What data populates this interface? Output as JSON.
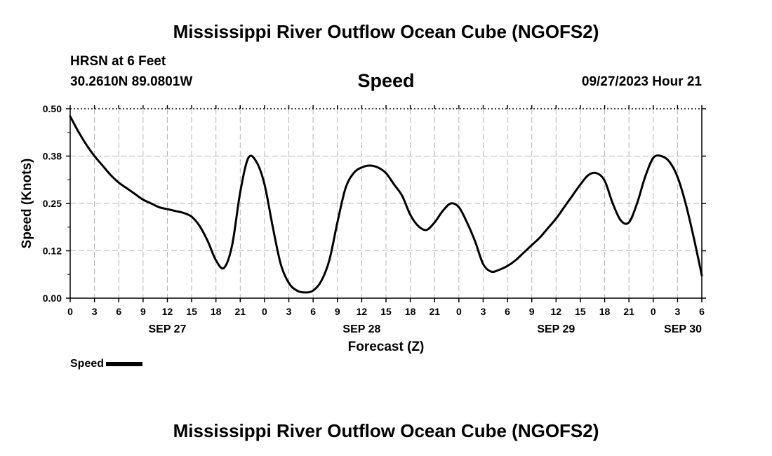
{
  "header": {
    "title": "Mississippi River Outflow Ocean Cube (NGOFS2)",
    "station": "HRSN at 6 Feet",
    "coords": "30.2610N  89.0801W",
    "datetime": "09/27/2023 Hour 21",
    "footer_title": "Mississippi River Outflow Ocean Cube (NGOFS2)"
  },
  "chart_data": {
    "type": "line",
    "title": "Speed",
    "xlabel": "Forecast (Z)",
    "ylabel": "Speed (Knots)",
    "x_unit": "hours from 00Z Sep 27 2023",
    "xlim": [
      0,
      78
    ],
    "ylim": [
      0,
      0.5
    ],
    "yticks": [
      0.0,
      0.125,
      0.25,
      0.375,
      0.5
    ],
    "ytick_labels": [
      "0.00",
      "0.12",
      "0.25",
      "0.38",
      "0.50"
    ],
    "xticks": [
      0,
      3,
      6,
      9,
      12,
      15,
      18,
      21,
      24,
      27,
      30,
      33,
      36,
      39,
      42,
      45,
      48,
      51,
      54,
      57,
      60,
      63,
      66,
      69,
      72,
      75,
      78
    ],
    "xtick_labels": [
      "0",
      "3",
      "6",
      "9",
      "12",
      "15",
      "18",
      "21",
      "0",
      "3",
      "6",
      "9",
      "12",
      "15",
      "18",
      "21",
      "0",
      "3",
      "6",
      "9",
      "12",
      "15",
      "18",
      "21",
      "0",
      "3",
      "6"
    ],
    "date_labels": [
      {
        "label": "SEP 27",
        "x": 12
      },
      {
        "label": "SEP 28",
        "x": 36
      },
      {
        "label": "SEP 29",
        "x": 60
      },
      {
        "label": "SEP 30",
        "x": 78
      }
    ],
    "grid": true,
    "legend": "bottom-left",
    "series": [
      {
        "name": "Speed",
        "color": "#000000",
        "x": [
          0,
          1,
          2,
          3,
          4,
          5,
          6,
          7,
          8,
          9,
          10,
          11,
          12,
          13,
          14,
          15,
          16,
          17,
          18,
          19,
          20,
          21,
          22,
          23,
          24,
          25,
          26,
          27,
          28,
          29,
          30,
          31,
          32,
          33,
          34,
          35,
          36,
          37,
          38,
          39,
          40,
          41,
          42,
          43,
          44,
          45,
          46,
          47,
          48,
          49,
          50,
          51,
          52,
          53,
          54,
          55,
          56,
          57,
          58,
          59,
          60,
          61,
          62,
          63,
          64,
          65,
          66,
          67,
          68,
          69,
          70,
          71,
          72,
          73,
          74,
          75,
          76,
          77,
          78
        ],
        "values": [
          0.48,
          0.44,
          0.405,
          0.375,
          0.35,
          0.325,
          0.305,
          0.29,
          0.275,
          0.26,
          0.25,
          0.24,
          0.235,
          0.23,
          0.225,
          0.215,
          0.19,
          0.15,
          0.1,
          0.08,
          0.14,
          0.28,
          0.37,
          0.36,
          0.3,
          0.19,
          0.09,
          0.04,
          0.02,
          0.015,
          0.02,
          0.045,
          0.1,
          0.2,
          0.29,
          0.33,
          0.345,
          0.35,
          0.345,
          0.33,
          0.3,
          0.27,
          0.22,
          0.19,
          0.18,
          0.2,
          0.23,
          0.25,
          0.24,
          0.2,
          0.15,
          0.09,
          0.07,
          0.075,
          0.085,
          0.1,
          0.12,
          0.14,
          0.16,
          0.185,
          0.21,
          0.24,
          0.27,
          0.3,
          0.325,
          0.33,
          0.31,
          0.25,
          0.205,
          0.2,
          0.25,
          0.32,
          0.37,
          0.375,
          0.36,
          0.32,
          0.25,
          0.16,
          0.06
        ]
      }
    ]
  }
}
